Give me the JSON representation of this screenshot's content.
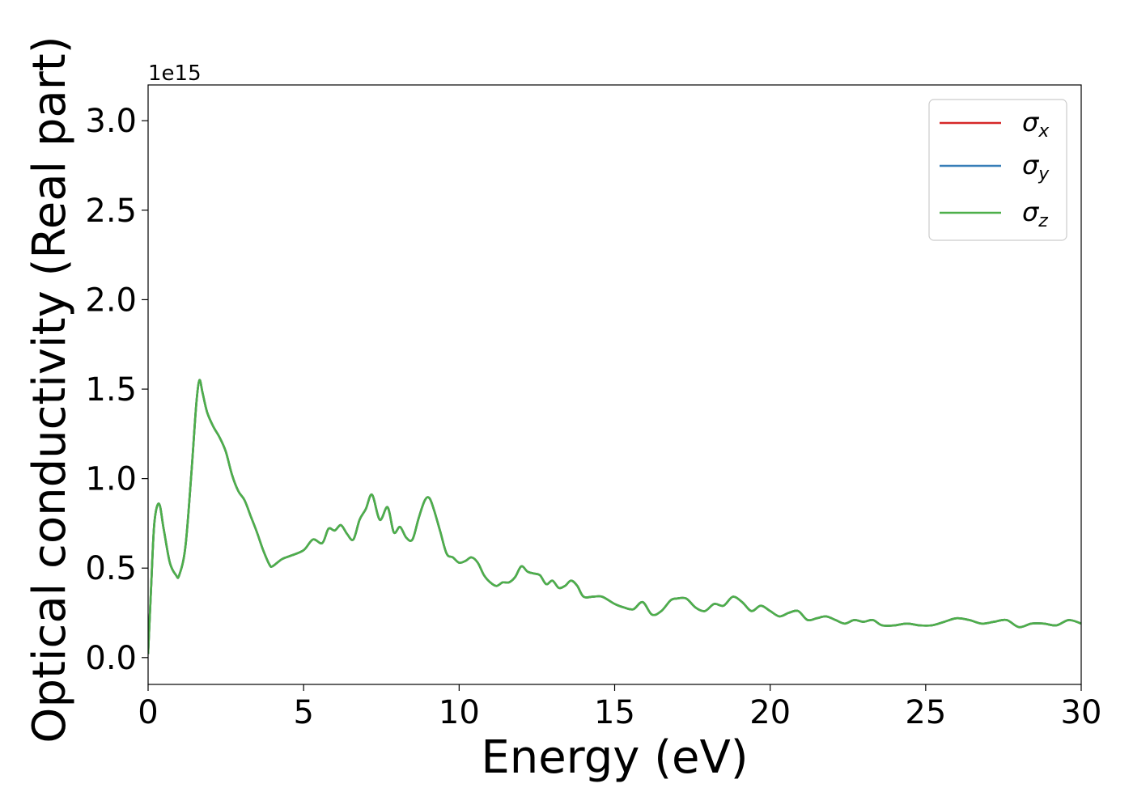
{
  "chart_data": {
    "type": "line",
    "title": "",
    "xlabel": "Energy (eV)",
    "ylabel": "Optical conductivity (Real part)",
    "y_offset_text": "1e15",
    "xlim": [
      0,
      30
    ],
    "ylim": [
      -0.15,
      3.2
    ],
    "x_ticks": [
      0,
      5,
      10,
      15,
      20,
      25,
      30
    ],
    "x_tick_labels": [
      "0",
      "5",
      "10",
      "15",
      "20",
      "25",
      "30"
    ],
    "y_ticks": [
      0.0,
      0.5,
      1.0,
      1.5,
      2.0,
      2.5,
      3.0
    ],
    "y_tick_labels": [
      "0.0",
      "0.5",
      "1.0",
      "1.5",
      "2.0",
      "2.5",
      "3.0"
    ],
    "grid": false,
    "legend_position": "top-right",
    "x": [
      0,
      0.1,
      0.2,
      0.35,
      0.5,
      0.7,
      0.9,
      1.0,
      1.2,
      1.4,
      1.55,
      1.65,
      1.75,
      1.9,
      2.1,
      2.3,
      2.5,
      2.7,
      2.9,
      3.1,
      3.3,
      3.5,
      3.7,
      3.9,
      4.0,
      4.3,
      4.6,
      5.0,
      5.3,
      5.6,
      5.8,
      6.0,
      6.2,
      6.4,
      6.6,
      6.8,
      7.0,
      7.2,
      7.45,
      7.7,
      7.9,
      8.1,
      8.3,
      8.5,
      8.7,
      8.9,
      9.05,
      9.2,
      9.4,
      9.6,
      9.8,
      10.0,
      10.2,
      10.4,
      10.6,
      10.8,
      11.0,
      11.2,
      11.4,
      11.6,
      11.8,
      12.0,
      12.2,
      12.4,
      12.6,
      12.8,
      13.0,
      13.2,
      13.4,
      13.6,
      13.8,
      14.0,
      14.3,
      14.6,
      15.0,
      15.3,
      15.6,
      15.9,
      16.2,
      16.5,
      16.8,
      17.0,
      17.3,
      17.6,
      17.9,
      18.2,
      18.5,
      18.8,
      19.1,
      19.4,
      19.7,
      20.0,
      20.3,
      20.6,
      20.9,
      21.2,
      21.5,
      21.8,
      22.1,
      22.4,
      22.7,
      23.0,
      23.3,
      23.6,
      24.0,
      24.4,
      24.8,
      25.2,
      25.6,
      26.0,
      26.4,
      26.8,
      27.2,
      27.6,
      28.0,
      28.4,
      28.8,
      29.2,
      29.6,
      30.0
    ],
    "series": [
      {
        "name": "σx",
        "color": "#d62728",
        "y": [
          0.02,
          0.4,
          0.75,
          0.86,
          0.72,
          0.53,
          0.46,
          0.46,
          0.62,
          1.05,
          1.42,
          1.55,
          1.48,
          1.37,
          1.29,
          1.23,
          1.15,
          1.02,
          0.93,
          0.88,
          0.79,
          0.7,
          0.6,
          0.52,
          0.51,
          0.55,
          0.57,
          0.6,
          0.66,
          0.64,
          0.72,
          0.71,
          0.74,
          0.69,
          0.66,
          0.77,
          0.83,
          0.91,
          0.77,
          0.84,
          0.7,
          0.73,
          0.67,
          0.66,
          0.78,
          0.88,
          0.89,
          0.82,
          0.7,
          0.58,
          0.56,
          0.53,
          0.54,
          0.56,
          0.53,
          0.46,
          0.42,
          0.4,
          0.42,
          0.42,
          0.45,
          0.51,
          0.48,
          0.47,
          0.46,
          0.41,
          0.43,
          0.39,
          0.4,
          0.43,
          0.4,
          0.34,
          0.34,
          0.34,
          0.3,
          0.28,
          0.27,
          0.31,
          0.24,
          0.26,
          0.32,
          0.33,
          0.33,
          0.28,
          0.26,
          0.3,
          0.29,
          0.34,
          0.31,
          0.26,
          0.29,
          0.26,
          0.23,
          0.25,
          0.26,
          0.21,
          0.22,
          0.23,
          0.21,
          0.19,
          0.21,
          0.2,
          0.21,
          0.18,
          0.18,
          0.19,
          0.18,
          0.18,
          0.2,
          0.22,
          0.21,
          0.19,
          0.2,
          0.21,
          0.17,
          0.19,
          0.19,
          0.18,
          0.21,
          0.19
        ]
      },
      {
        "name": "σy",
        "color": "#377eb8",
        "y": [
          0.02,
          0.4,
          0.75,
          0.86,
          0.72,
          0.53,
          0.46,
          0.46,
          0.62,
          1.05,
          1.42,
          1.55,
          1.48,
          1.37,
          1.29,
          1.23,
          1.15,
          1.02,
          0.93,
          0.88,
          0.79,
          0.7,
          0.6,
          0.52,
          0.51,
          0.55,
          0.57,
          0.6,
          0.66,
          0.64,
          0.72,
          0.71,
          0.74,
          0.69,
          0.66,
          0.77,
          0.83,
          0.91,
          0.77,
          0.84,
          0.7,
          0.73,
          0.67,
          0.66,
          0.78,
          0.88,
          0.89,
          0.82,
          0.7,
          0.58,
          0.56,
          0.53,
          0.54,
          0.56,
          0.53,
          0.46,
          0.42,
          0.4,
          0.42,
          0.42,
          0.45,
          0.51,
          0.48,
          0.47,
          0.46,
          0.41,
          0.43,
          0.39,
          0.4,
          0.43,
          0.4,
          0.34,
          0.34,
          0.34,
          0.3,
          0.28,
          0.27,
          0.31,
          0.24,
          0.26,
          0.32,
          0.33,
          0.33,
          0.28,
          0.26,
          0.3,
          0.29,
          0.34,
          0.31,
          0.26,
          0.29,
          0.26,
          0.23,
          0.25,
          0.26,
          0.21,
          0.22,
          0.23,
          0.21,
          0.19,
          0.21,
          0.2,
          0.21,
          0.18,
          0.18,
          0.19,
          0.18,
          0.18,
          0.2,
          0.22,
          0.21,
          0.19,
          0.2,
          0.21,
          0.17,
          0.19,
          0.19,
          0.18,
          0.21,
          0.19
        ]
      },
      {
        "name": "σz",
        "color": "#4daf4a",
        "y": [
          0.02,
          0.4,
          0.75,
          0.86,
          0.72,
          0.53,
          0.46,
          0.46,
          0.62,
          1.05,
          1.42,
          1.55,
          1.48,
          1.37,
          1.29,
          1.23,
          1.15,
          1.02,
          0.93,
          0.88,
          0.79,
          0.7,
          0.6,
          0.52,
          0.51,
          0.55,
          0.57,
          0.6,
          0.66,
          0.64,
          0.72,
          0.71,
          0.74,
          0.69,
          0.66,
          0.77,
          0.83,
          0.91,
          0.77,
          0.84,
          0.7,
          0.73,
          0.67,
          0.66,
          0.78,
          0.88,
          0.89,
          0.82,
          0.7,
          0.58,
          0.56,
          0.53,
          0.54,
          0.56,
          0.53,
          0.46,
          0.42,
          0.4,
          0.42,
          0.42,
          0.45,
          0.51,
          0.48,
          0.47,
          0.46,
          0.41,
          0.43,
          0.39,
          0.4,
          0.43,
          0.4,
          0.34,
          0.34,
          0.34,
          0.3,
          0.28,
          0.27,
          0.31,
          0.24,
          0.26,
          0.32,
          0.33,
          0.33,
          0.28,
          0.26,
          0.3,
          0.29,
          0.34,
          0.31,
          0.26,
          0.29,
          0.26,
          0.23,
          0.25,
          0.26,
          0.21,
          0.22,
          0.23,
          0.21,
          0.19,
          0.21,
          0.2,
          0.21,
          0.18,
          0.18,
          0.19,
          0.18,
          0.18,
          0.2,
          0.22,
          0.21,
          0.19,
          0.2,
          0.21,
          0.17,
          0.19,
          0.19,
          0.18,
          0.21,
          0.19
        ]
      }
    ]
  }
}
